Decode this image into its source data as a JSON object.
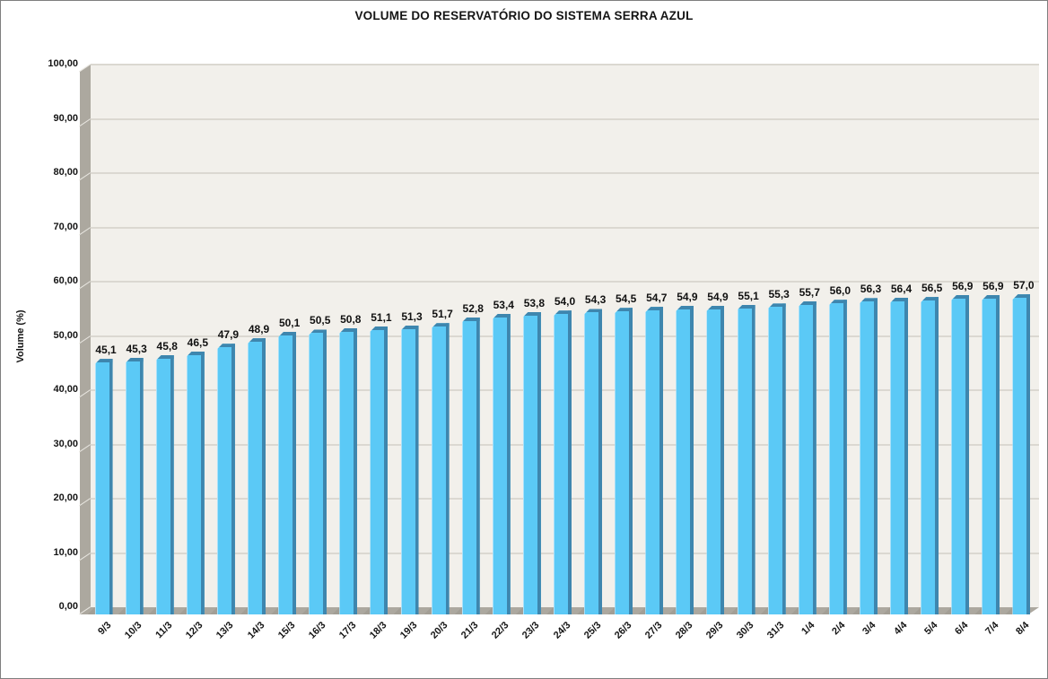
{
  "title": "VOLUME DO RESERVATÓRIO DO SISTEMA SERRA AZUL",
  "chart_data": {
    "type": "bar",
    "title": "VOLUME DO RESERVATÓRIO DO SISTEMA SERRA AZUL",
    "xlabel": "",
    "ylabel": "Volume (%)",
    "ylim": [
      0,
      100
    ],
    "y_tick_step": 10,
    "y_tick_labels": [
      "0,00",
      "10,00",
      "20,00",
      "30,00",
      "40,00",
      "50,00",
      "60,00",
      "70,00",
      "80,00",
      "90,00",
      "100,00"
    ],
    "grid": true,
    "legend": false,
    "style": "3d-column",
    "categories": [
      "9/3",
      "10/3",
      "11/3",
      "12/3",
      "13/3",
      "14/3",
      "15/3",
      "16/3",
      "17/3",
      "18/3",
      "19/3",
      "20/3",
      "21/3",
      "22/3",
      "23/3",
      "24/3",
      "25/3",
      "26/3",
      "27/3",
      "28/3",
      "29/3",
      "30/3",
      "31/3",
      "1/4",
      "2/4",
      "3/4",
      "4/4",
      "5/4",
      "6/4",
      "7/4",
      "8/4"
    ],
    "values": [
      45.1,
      45.3,
      45.8,
      46.5,
      47.9,
      48.9,
      50.1,
      50.5,
      50.8,
      51.1,
      51.3,
      51.7,
      52.8,
      53.4,
      53.8,
      54.0,
      54.3,
      54.5,
      54.7,
      54.9,
      54.9,
      55.1,
      55.3,
      55.7,
      56.0,
      56.3,
      56.4,
      56.5,
      56.9,
      56.9,
      57.0
    ],
    "value_labels": [
      "45,1",
      "45,3",
      "45,8",
      "46,5",
      "47,9",
      "48,9",
      "50,1",
      "50,5",
      "50,8",
      "51,1",
      "51,3",
      "51,7",
      "52,8",
      "53,4",
      "53,8",
      "54,0",
      "54,3",
      "54,5",
      "54,7",
      "54,9",
      "54,9",
      "55,1",
      "55,3",
      "55,7",
      "56,0",
      "56,3",
      "56,4",
      "56,5",
      "56,9",
      "56,9",
      "57,0"
    ],
    "colors": {
      "bar_face": "#5BC9F6",
      "bar_edge": "#3E86AE",
      "bar_highlight": "#A9E1FA",
      "back_wall": "#F2F0EB",
      "gridline": "#DBD8D1",
      "side_wall": "#ACA89F",
      "wall_mark": "#E8E6E0",
      "bar_shadow": "#A29E95",
      "text": "#151515"
    }
  }
}
